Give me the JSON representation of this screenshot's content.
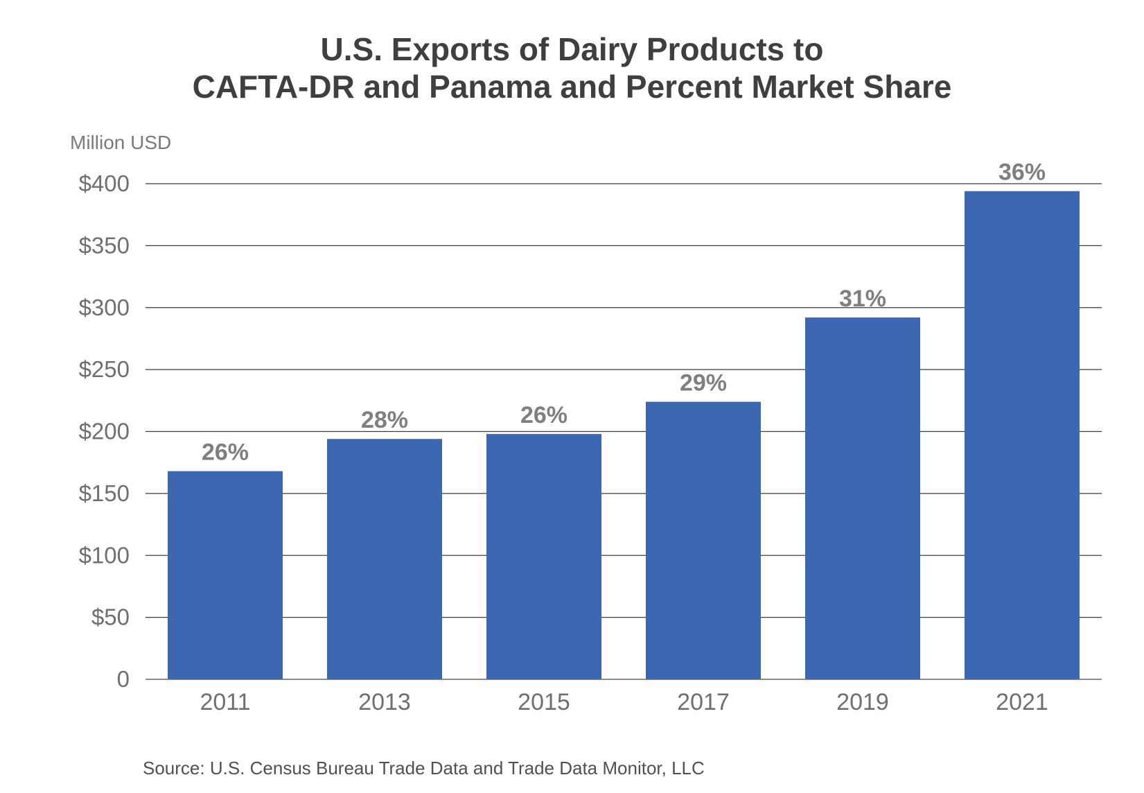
{
  "chart_data": {
    "type": "bar",
    "title": "U.S. Exports of Dairy Products to",
    "title_line2": "CAFTA-DR and Panama and Percent Market Share",
    "ylabel": "Million USD",
    "xlabel": "",
    "categories": [
      "2011",
      "2013",
      "2015",
      "2017",
      "2019",
      "2021"
    ],
    "values": [
      168,
      194,
      198,
      224,
      292,
      394
    ],
    "data_labels": [
      "26%",
      "28%",
      "26%",
      "29%",
      "31%",
      "36%"
    ],
    "ylim": [
      0,
      400
    ],
    "yticks": [
      0,
      50,
      100,
      150,
      200,
      250,
      300,
      350,
      400
    ],
    "ytick_labels": [
      "0",
      "$50",
      "$100",
      "$150",
      "$200",
      "$250",
      "$300",
      "$350",
      "$400"
    ],
    "grid": true,
    "bar_color": "#3d67b1",
    "data_label_color": "#7f7f7f",
    "source": "Source: U.S. Census Bureau Trade Data and Trade Data Monitor, LLC"
  }
}
